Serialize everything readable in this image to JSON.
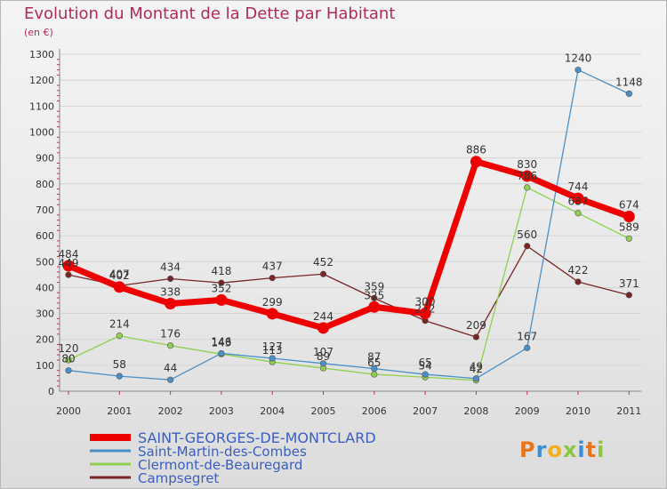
{
  "title": "Evolution du Montant de la Dette par Habitant",
  "unit": "(en €)",
  "logo": {
    "letters": [
      "P",
      "r",
      "o",
      "x",
      "i",
      "t",
      "i"
    ],
    "colors": [
      "#e8741c",
      "#3a8fd1",
      "#f0b020",
      "#8cc63f",
      "#3a8fd1",
      "#e8741c",
      "#8cc63f"
    ]
  },
  "chart_data": {
    "type": "line",
    "title": "Evolution du Montant de la Dette par Habitant",
    "ylabel": "(en €)",
    "xlabel": "",
    "x": [
      "2000",
      "2001",
      "2002",
      "2003",
      "2004",
      "2005",
      "2006",
      "2007",
      "2008",
      "2009",
      "2010",
      "2011"
    ],
    "ylim": [
      0,
      1300
    ],
    "yticks": [
      0,
      100,
      200,
      300,
      400,
      500,
      600,
      700,
      800,
      900,
      1000,
      1100,
      1200,
      1300
    ],
    "grid": "horizontal",
    "legend": "bottom-left",
    "series": [
      {
        "name": "SAINT-GEORGES-DE-MONTCLARD",
        "color": "#ee0000",
        "values": [
          484,
          402,
          338,
          352,
          299,
          244,
          325,
          300,
          886,
          830,
          744,
          674
        ]
      },
      {
        "name": "Saint-Martin-des-Combes",
        "color": "#4a90c8",
        "values": [
          80,
          58,
          44,
          146,
          127,
          107,
          87,
          65,
          49,
          167,
          1240,
          1148
        ]
      },
      {
        "name": "Clermont-de-Beauregard",
        "color": "#90d050",
        "values": [
          120,
          214,
          176,
          143,
          113,
          89,
          65,
          54,
          42,
          786,
          687,
          589
        ]
      },
      {
        "name": "Campsegret",
        "color": "#7a2424",
        "values": [
          449,
          407,
          434,
          418,
          437,
          452,
          359,
          272,
          209,
          560,
          422,
          371
        ]
      }
    ]
  }
}
